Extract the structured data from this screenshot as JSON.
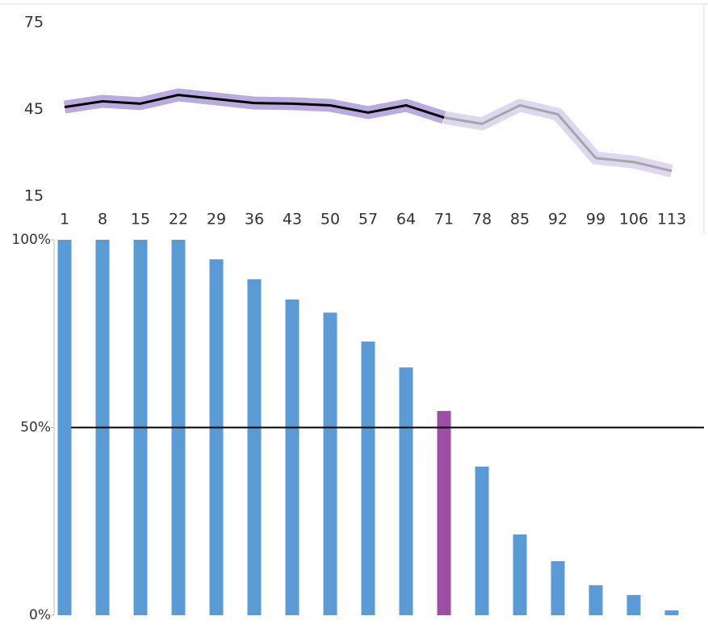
{
  "chart_data": [
    {
      "type": "line",
      "categories": [
        "1",
        "8",
        "15",
        "22",
        "29",
        "36",
        "43",
        "50",
        "57",
        "64",
        "71",
        "78",
        "85",
        "92",
        "99",
        "106",
        "113"
      ],
      "series": [
        {
          "color": "#000000",
          "band_color": "#9b87d1",
          "values": [
            45.8,
            47.8,
            47,
            50,
            48.6,
            47.2,
            47,
            46.4,
            43.9,
            46.4,
            42.2,
            null,
            null,
            null,
            null,
            null,
            null
          ]
        },
        {
          "color": "#a6a6a6",
          "band_color": "#cfc6ea",
          "values": [
            null,
            null,
            null,
            null,
            null,
            null,
            null,
            null,
            null,
            null,
            42.2,
            40,
            46.4,
            43.3,
            28.2,
            26.8,
            23.7
          ]
        }
      ],
      "ylim": [
        15,
        75
      ],
      "yticks": [
        15,
        45,
        75
      ]
    },
    {
      "type": "bar",
      "values": [
        100,
        100,
        100,
        100,
        94.8,
        89.5,
        84.1,
        80.6,
        72.9,
        66,
        54.4,
        39.6,
        21.5,
        14.4,
        8,
        5.4,
        1.3
      ],
      "colors": [
        "#5b9bd5",
        "#5b9bd5",
        "#5b9bd5",
        "#5b9bd5",
        "#5b9bd5",
        "#5b9bd5",
        "#5b9bd5",
        "#5b9bd5",
        "#5b9bd5",
        "#5b9bd5",
        "#9e4fa5",
        "#5b9bd5",
        "#5b9bd5",
        "#5b9bd5",
        "#5b9bd5",
        "#5b9bd5",
        "#5b9bd5"
      ],
      "ylim": [
        0,
        100
      ],
      "yticks": [
        {
          "value": 0,
          "label": "0%"
        },
        {
          "value": 50,
          "label": "50%"
        },
        {
          "value": 100,
          "label": "100%"
        }
      ],
      "reference_line": 50
    }
  ]
}
